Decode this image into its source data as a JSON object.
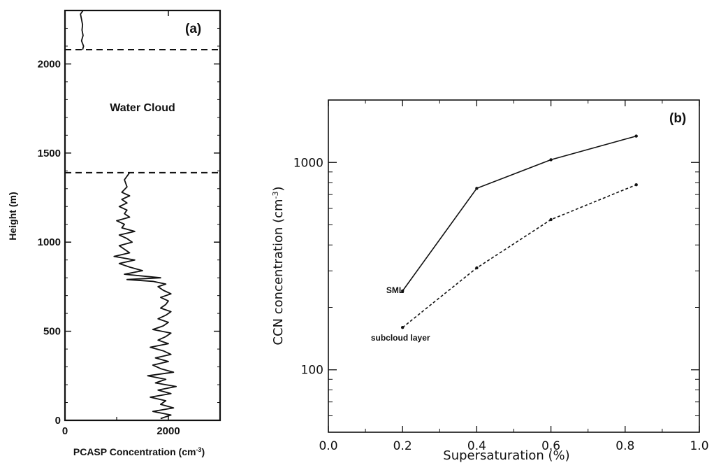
{
  "chart_data": [
    {
      "type": "line",
      "panel_label": "(a)",
      "xlabel": "PCASP Concentration (cm",
      "xlabel_sup": "-3",
      "xlabel_end": ")",
      "ylabel": "Height (m)",
      "xlim": [
        0,
        3000
      ],
      "ylim": [
        0,
        2300
      ],
      "xticks": [
        0,
        2000
      ],
      "xtick_labels": [
        "0",
        "2000"
      ],
      "yticks": [
        0,
        500,
        1000,
        1500,
        2000
      ],
      "ytick_labels": [
        "0",
        "500",
        "1000",
        "1500",
        "2000"
      ],
      "hlines": [
        1390,
        2080
      ],
      "annotation": "Water Cloud",
      "annotation_y": 1750,
      "series": [
        {
          "x": [
            1850,
            2050,
            1700,
            2100,
            1850,
            1950,
            1650,
            2050,
            1800,
            2150,
            1750,
            1950,
            1600,
            2100,
            1850,
            1700,
            2000,
            1750,
            2050,
            1900,
            1650,
            2000,
            1800,
            1950,
            2050,
            1700,
            1900,
            2000,
            1800,
            1950,
            2050,
            1850,
            1950,
            2000,
            1850,
            1950,
            2050,
            1900,
            1800,
            1950,
            1700,
            1200,
            1850,
            1150,
            1500,
            1250,
            1050,
            1350,
            950,
            1250,
            1150,
            1050,
            1300,
            1200,
            1050,
            1350,
            1100,
            1150,
            1000,
            1250,
            1150,
            1200,
            1050,
            1200,
            1100,
            1250,
            1100,
            1200,
            1150,
            1250
          ],
          "y": [
            10,
            30,
            50,
            70,
            90,
            110,
            130,
            150,
            170,
            190,
            210,
            230,
            250,
            270,
            290,
            310,
            330,
            350,
            370,
            390,
            410,
            430,
            450,
            470,
            490,
            510,
            530,
            550,
            570,
            590,
            610,
            630,
            650,
            670,
            690,
            700,
            710,
            730,
            750,
            765,
            780,
            790,
            800,
            820,
            840,
            860,
            880,
            900,
            920,
            940,
            960,
            980,
            1000,
            1020,
            1040,
            1060,
            1080,
            1100,
            1120,
            1140,
            1160,
            1180,
            1200,
            1220,
            1240,
            1260,
            1280,
            1310,
            1350,
            1390
          ]
        },
        {
          "x": [
            340,
            360,
            320,
            350,
            330,
            340,
            320,
            300,
            350
          ],
          "y": [
            2080,
            2100,
            2130,
            2160,
            2190,
            2220,
            2250,
            2280,
            2300
          ]
        }
      ]
    },
    {
      "type": "line",
      "panel_label": "(b)",
      "xlabel": "Supersaturation (%)",
      "ylabel": "CCN concentration (cm",
      "ylabel_sup": "-3",
      "ylabel_end": ")",
      "xlim": [
        0.0,
        1.0
      ],
      "ylim": [
        50,
        2000
      ],
      "yscale": "log",
      "xticks": [
        0.0,
        0.2,
        0.4,
        0.6,
        0.8,
        1.0
      ],
      "xtick_labels": [
        "0.0",
        "0.2",
        "0.4",
        "0.6",
        "0.8",
        "1.0"
      ],
      "yticks": [
        100,
        1000
      ],
      "ytick_labels": [
        "100",
        "1000"
      ],
      "series": [
        {
          "name": "SML",
          "style": "solid",
          "x": [
            0.2,
            0.4,
            0.6,
            0.83
          ],
          "y": [
            240,
            750,
            1030,
            1340
          ]
        },
        {
          "name": "subcloud layer",
          "style": "dotted",
          "x": [
            0.2,
            0.4,
            0.6,
            0.83
          ],
          "y": [
            160,
            310,
            530,
            780
          ]
        }
      ]
    }
  ]
}
